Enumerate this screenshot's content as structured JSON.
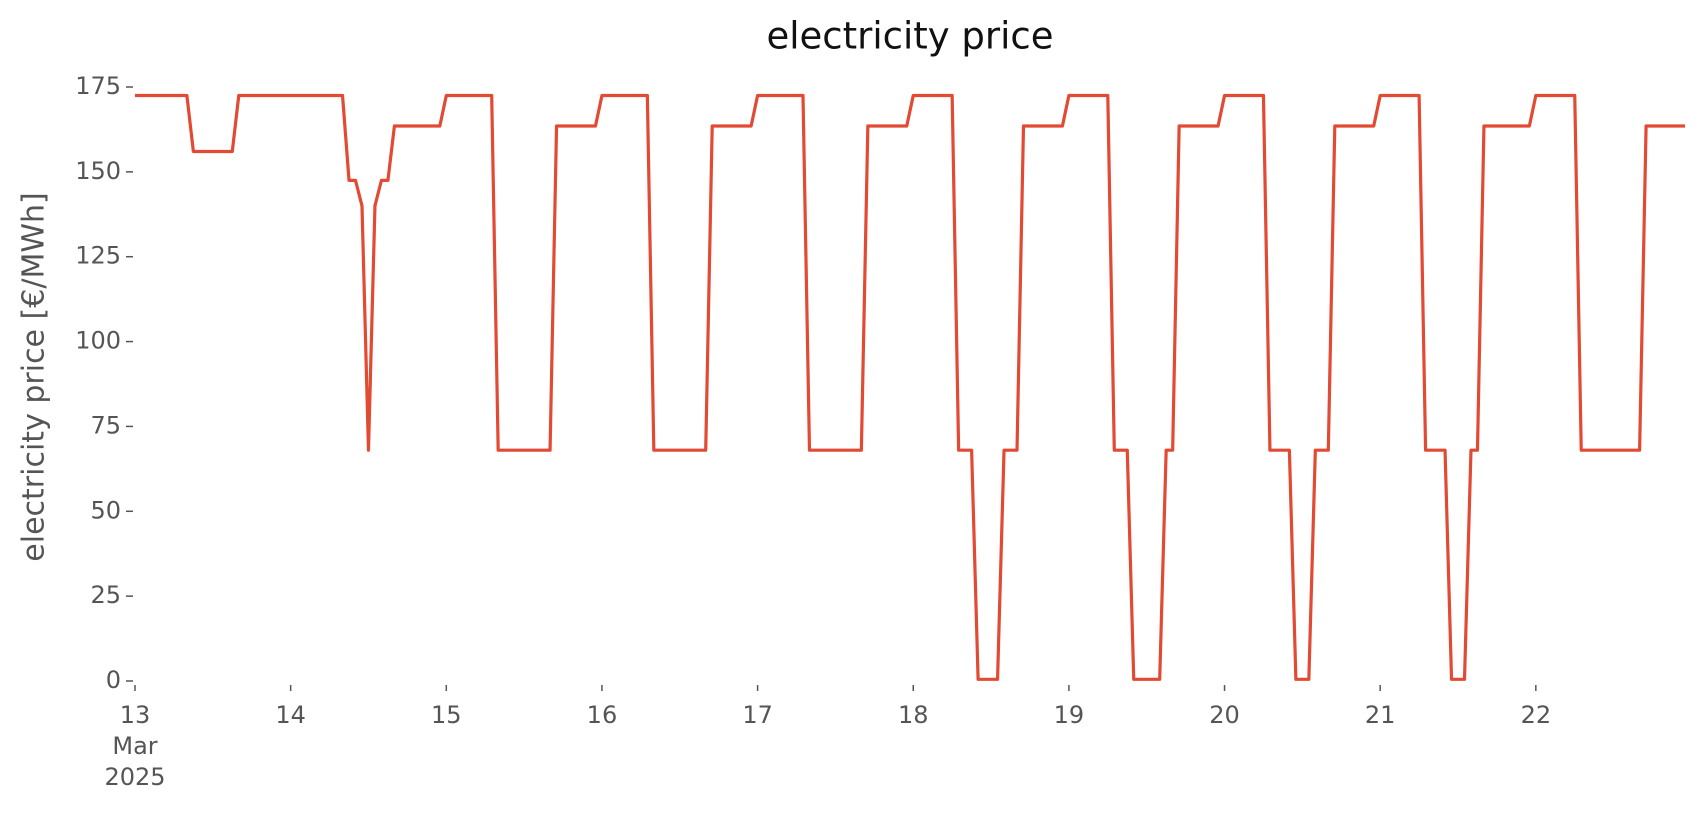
{
  "chart_data": {
    "type": "line",
    "title": "electricity price",
    "ylabel": "electricity price [€/MWh]",
    "x": [
      "2025-03-13 00:00",
      "2025-03-13 08:00",
      "2025-03-13 09:00",
      "2025-03-13 15:00",
      "2025-03-13 16:00",
      "2025-03-14 08:00",
      "2025-03-14 09:00",
      "2025-03-14 10:00",
      "2025-03-14 11:00",
      "2025-03-14 12:00",
      "2025-03-14 13:00",
      "2025-03-14 14:00",
      "2025-03-14 15:00",
      "2025-03-14 16:00",
      "2025-03-14 23:00",
      "2025-03-15 00:00",
      "2025-03-15 07:00",
      "2025-03-15 08:00",
      "2025-03-15 16:00",
      "2025-03-15 17:00",
      "2025-03-15 23:00",
      "2025-03-16 00:00",
      "2025-03-16 07:00",
      "2025-03-16 08:00",
      "2025-03-16 16:00",
      "2025-03-16 17:00",
      "2025-03-16 23:00",
      "2025-03-17 00:00",
      "2025-03-17 07:00",
      "2025-03-17 08:00",
      "2025-03-17 16:00",
      "2025-03-17 17:00",
      "2025-03-17 23:00",
      "2025-03-18 00:00",
      "2025-03-18 06:00",
      "2025-03-18 07:00",
      "2025-03-18 09:00",
      "2025-03-18 10:00",
      "2025-03-18 13:00",
      "2025-03-18 14:00",
      "2025-03-18 16:00",
      "2025-03-18 17:00",
      "2025-03-18 23:00",
      "2025-03-19 00:00",
      "2025-03-19 06:00",
      "2025-03-19 07:00",
      "2025-03-19 09:00",
      "2025-03-19 10:00",
      "2025-03-19 14:00",
      "2025-03-19 15:00",
      "2025-03-19 16:00",
      "2025-03-19 17:00",
      "2025-03-19 23:00",
      "2025-03-20 00:00",
      "2025-03-20 06:00",
      "2025-03-20 07:00",
      "2025-03-20 10:00",
      "2025-03-20 11:00",
      "2025-03-20 13:00",
      "2025-03-20 14:00",
      "2025-03-20 16:00",
      "2025-03-20 17:00",
      "2025-03-20 23:00",
      "2025-03-21 00:00",
      "2025-03-21 06:00",
      "2025-03-21 07:00",
      "2025-03-21 10:00",
      "2025-03-21 11:00",
      "2025-03-21 13:00",
      "2025-03-21 14:00",
      "2025-03-21 15:00",
      "2025-03-21 16:00",
      "2025-03-21 23:00",
      "2025-03-22 00:00",
      "2025-03-22 06:00",
      "2025-03-22 07:00",
      "2025-03-22 16:00",
      "2025-03-22 17:00",
      "2025-03-22 23:00"
    ],
    "series": [
      {
        "name": "electricity price",
        "color": "#e24a33",
        "values": [
          172.5,
          172.5,
          156,
          156,
          172.5,
          172.5,
          147.5,
          147.5,
          140,
          68,
          140,
          147.5,
          147.5,
          163.5,
          163.5,
          172.5,
          172.5,
          68,
          68,
          163.5,
          163.5,
          172.5,
          172.5,
          68,
          68,
          163.5,
          163.5,
          172.5,
          172.5,
          68,
          68,
          163.5,
          163.5,
          172.5,
          172.5,
          68,
          68,
          0.5,
          0.5,
          68,
          68,
          163.5,
          163.5,
          172.5,
          172.5,
          68,
          68,
          0.5,
          0.5,
          68,
          68,
          163.5,
          163.5,
          172.5,
          172.5,
          68,
          68,
          0.5,
          0.5,
          68,
          68,
          163.5,
          163.5,
          172.5,
          172.5,
          68,
          68,
          0.5,
          0.5,
          68,
          68,
          163.5,
          163.5,
          172.5,
          172.5,
          68,
          68,
          163.5,
          163.5
        ]
      }
    ],
    "xlim": [
      "2025-03-13 00:00",
      "2025-03-22 23:00"
    ],
    "xticks": [
      {
        "value": "2025-03-13 00:00",
        "label": "13 Mar 2025"
      },
      {
        "value": "2025-03-14 00:00",
        "label": "14"
      },
      {
        "value": "2025-03-15 00:00",
        "label": "15"
      },
      {
        "value": "2025-03-16 00:00",
        "label": "16"
      },
      {
        "value": "2025-03-17 00:00",
        "label": "17"
      },
      {
        "value": "2025-03-18 00:00",
        "label": "18"
      },
      {
        "value": "2025-03-19 00:00",
        "label": "19"
      },
      {
        "value": "2025-03-20 00:00",
        "label": "20"
      },
      {
        "value": "2025-03-21 00:00",
        "label": "21"
      },
      {
        "value": "2025-03-22 00:00",
        "label": "22"
      }
    ],
    "ylim": [
      0,
      175
    ],
    "yticks": [
      0,
      25,
      50,
      75,
      100,
      125,
      150,
      175
    ],
    "grid": false
  }
}
